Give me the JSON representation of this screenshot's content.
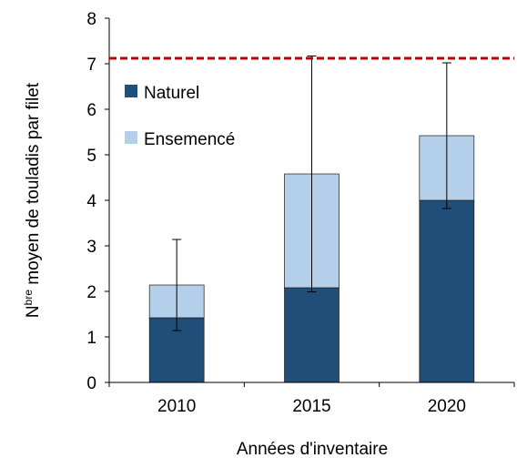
{
  "chart_data": {
    "type": "stacked_bar",
    "categories": [
      "2010",
      "2015",
      "2020"
    ],
    "series": [
      {
        "name": "Naturel",
        "color": "#1f4e79",
        "values": [
          1.42,
          2.08,
          4.0
        ]
      },
      {
        "name": "Ensemencé",
        "color": "#b4cfe9",
        "values": [
          0.72,
          2.5,
          1.42
        ]
      }
    ],
    "errors": [
      1.0,
      2.59,
      1.6
    ],
    "reference_line": {
      "value": 7.12,
      "color": "#c00000"
    },
    "ylim": [
      0,
      8
    ],
    "yticks": [
      0,
      1,
      2,
      3,
      4,
      5,
      6,
      7,
      8
    ],
    "xlabel": "Années d'inventaire",
    "ylabel": {
      "base": "N",
      "sup": "bre",
      "rest": " moyen de touladis par filet"
    },
    "legend": "top-left"
  }
}
